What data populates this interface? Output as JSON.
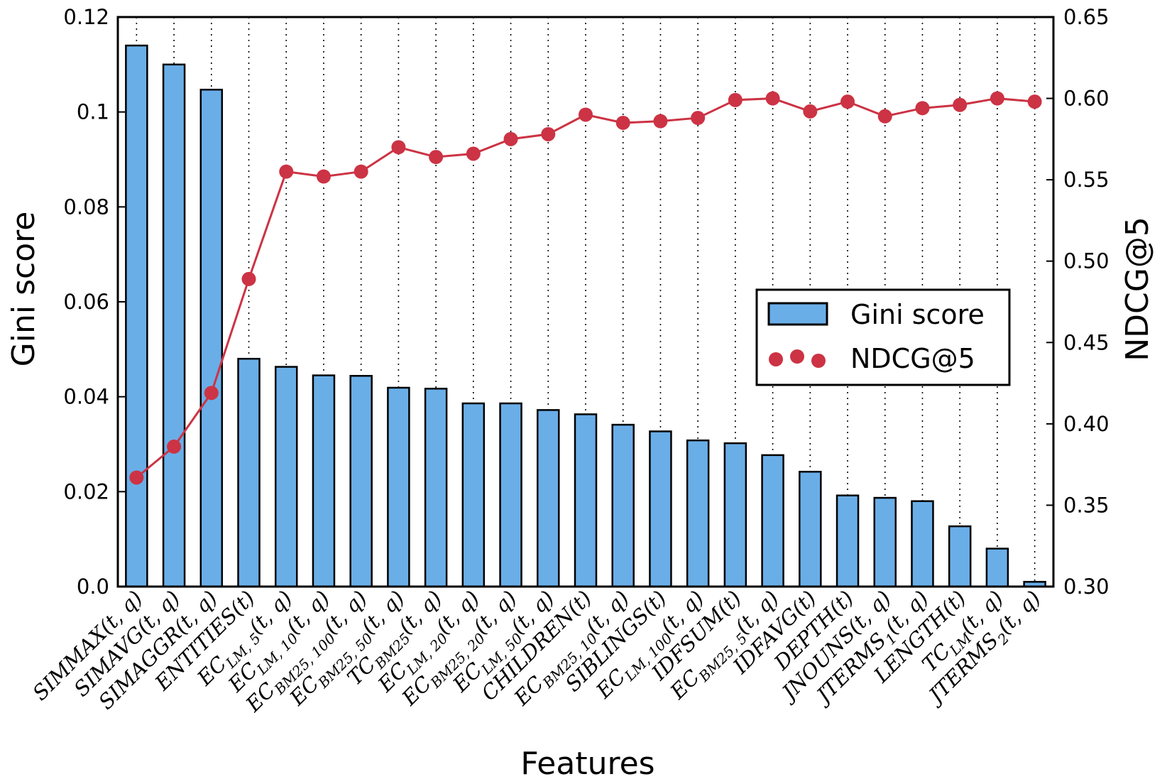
{
  "chart_data": {
    "type": "bar+line",
    "xlabel": "Features",
    "ylabel": "Gini score",
    "y2label": "NDCG@5",
    "ylim": [
      0,
      0.12
    ],
    "y2lim": [
      0.3,
      0.65
    ],
    "yticks": [
      "0.0",
      "0.02",
      "0.04",
      "0.06",
      "0.08",
      "0.1",
      "0.12"
    ],
    "y2ticks": [
      "0.30",
      "0.35",
      "0.40",
      "0.45",
      "0.50",
      "0.55",
      "0.60",
      "0.65"
    ],
    "grid": "vertical dotted",
    "legend_position": "center-right",
    "categories": [
      {
        "base": "SIMMAX",
        "sub": "",
        "args": "(t, q)"
      },
      {
        "base": "SIMAVG",
        "sub": "",
        "args": "(t, q)"
      },
      {
        "base": "SIMAGGR",
        "sub": "",
        "args": "(t, q)"
      },
      {
        "base": "ENTITIES",
        "sub": "",
        "args": "(t)"
      },
      {
        "base": "EC",
        "sub": "LM, 5",
        "args": "(t, q)"
      },
      {
        "base": "EC",
        "sub": "LM, 10",
        "args": "(t, q)"
      },
      {
        "base": "EC",
        "sub": "BM25, 100",
        "args": "(t, q)"
      },
      {
        "base": "EC",
        "sub": "BM25, 50",
        "args": "(t, q)"
      },
      {
        "base": "TC",
        "sub": "BM25",
        "args": "(t, q)"
      },
      {
        "base": "EC",
        "sub": "LM, 20",
        "args": "(t, q)"
      },
      {
        "base": "EC",
        "sub": "BM25, 20",
        "args": "(t, q)"
      },
      {
        "base": "EC",
        "sub": "LM, 50",
        "args": "(t, q)"
      },
      {
        "base": "CHILDREN",
        "sub": "",
        "args": "(t)"
      },
      {
        "base": "EC",
        "sub": "BM25, 10",
        "args": "(t, q)"
      },
      {
        "base": "SIBLINGS",
        "sub": "",
        "args": "(t)"
      },
      {
        "base": "EC",
        "sub": "LM, 100",
        "args": "(t, q)"
      },
      {
        "base": "IDFSUM",
        "sub": "",
        "args": "(t)"
      },
      {
        "base": "EC",
        "sub": "BM25, 5",
        "args": "(t, q)"
      },
      {
        "base": "IDFAVG",
        "sub": "",
        "args": "(t)"
      },
      {
        "base": "DEPTH",
        "sub": "",
        "args": "(t)"
      },
      {
        "base": "JNOUNS",
        "sub": "",
        "args": "(t, q)"
      },
      {
        "base": "JTERMS",
        "sub": "1",
        "args": "(t, q)"
      },
      {
        "base": "LENGTH",
        "sub": "",
        "args": "(t)"
      },
      {
        "base": "TC",
        "sub": "LM",
        "args": "(t, q)"
      },
      {
        "base": "JTERMS",
        "sub": "2",
        "args": "(t, q)"
      }
    ],
    "series": [
      {
        "name": "Gini score",
        "type": "bar",
        "axis": "left",
        "color": "#6aaee8",
        "values": [
          0.114,
          0.11,
          0.1047,
          0.048,
          0.0463,
          0.0445,
          0.0444,
          0.0419,
          0.0417,
          0.0386,
          0.0386,
          0.0372,
          0.0363,
          0.0341,
          0.0327,
          0.0308,
          0.0302,
          0.0277,
          0.0242,
          0.0192,
          0.0187,
          0.018,
          0.0127,
          0.008,
          0.001
        ]
      },
      {
        "name": "NDCG@5",
        "type": "line",
        "axis": "right",
        "color": "#cc3344",
        "values": [
          0.367,
          0.386,
          0.419,
          0.489,
          0.555,
          0.552,
          0.555,
          0.57,
          0.564,
          0.566,
          0.575,
          0.578,
          0.59,
          0.585,
          0.586,
          0.588,
          0.599,
          0.6,
          0.592,
          0.598,
          0.589,
          0.594,
          0.596,
          0.6,
          0.598
        ]
      }
    ]
  }
}
